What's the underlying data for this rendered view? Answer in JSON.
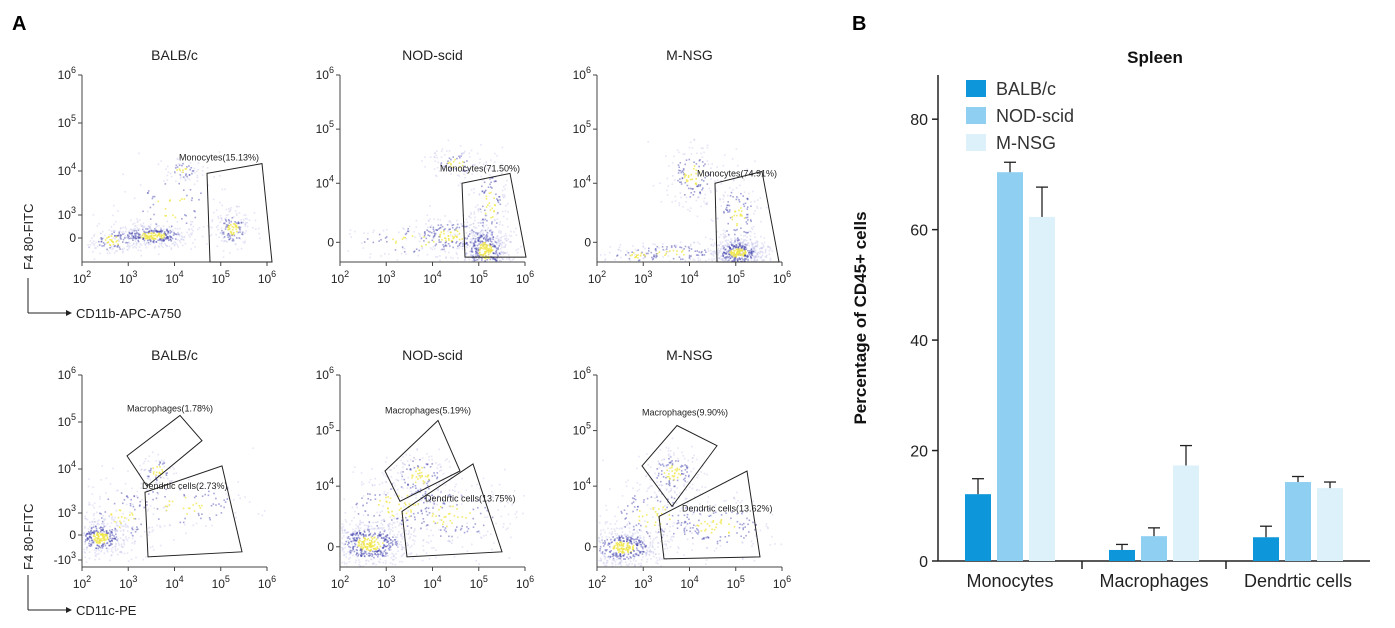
{
  "panel_a_label": "A",
  "panel_b_label": "B",
  "flow_rows": [
    {
      "x_axis_label": "CD11b-APC-A750",
      "y_axis_label": "F4 80-FITC",
      "x_ticks": [
        [
          "10",
          "2"
        ],
        [
          "10",
          "3"
        ],
        [
          "10",
          "4"
        ],
        [
          "10",
          "5"
        ],
        [
          "10",
          "6"
        ]
      ],
      "plots": [
        {
          "title": "BALB/c",
          "y_ticks": [
            [
              "10",
              "6"
            ],
            [
              "10",
              "5"
            ],
            [
              "10",
              "4"
            ],
            [
              "10",
              "3"
            ],
            [
              "0",
              ""
            ]
          ],
          "gates": [
            {
              "label": "Monocytes(15.13%)",
              "value": 15.13
            }
          ]
        },
        {
          "title": "NOD-scid",
          "y_ticks": [
            [
              "10",
              "6"
            ],
            [
              "10",
              "5"
            ],
            [
              "10",
              "4"
            ],
            [
              "0",
              ""
            ]
          ],
          "gates": [
            {
              "label": "Monocytes(71.50%)",
              "value": 71.5
            }
          ]
        },
        {
          "title": "M-NSG",
          "y_ticks": [
            [
              "10",
              "6"
            ],
            [
              "10",
              "5"
            ],
            [
              "10",
              "4"
            ],
            [
              "0",
              ""
            ]
          ],
          "gates": [
            {
              "label": "Monocytes(74.91%)",
              "value": 74.91
            }
          ]
        }
      ]
    },
    {
      "x_axis_label": "CD11c-PE",
      "y_axis_label": "F4 80-FITC",
      "x_ticks": [
        [
          "10",
          "2"
        ],
        [
          "10",
          "3"
        ],
        [
          "10",
          "4"
        ],
        [
          "10",
          "5"
        ],
        [
          "10",
          "6"
        ]
      ],
      "plots": [
        {
          "title": "BALB/c",
          "y_ticks": [
            [
              "10",
              "6"
            ],
            [
              "10",
              "5"
            ],
            [
              "10",
              "4"
            ],
            [
              "10",
              "3"
            ],
            [
              "0",
              ""
            ],
            [
              "-10",
              "3"
            ]
          ],
          "gates": [
            {
              "label": "Macrophages(1.78%)",
              "value": 1.78
            },
            {
              "label": "Dendrtic cells(2.73%)",
              "value": 2.73
            }
          ]
        },
        {
          "title": "NOD-scid",
          "y_ticks": [
            [
              "10",
              "6"
            ],
            [
              "10",
              "5"
            ],
            [
              "10",
              "4"
            ],
            [
              "0",
              ""
            ]
          ],
          "gates": [
            {
              "label": "Macrophages(5.19%)",
              "value": 5.19
            },
            {
              "label": "Dendrtic cells(13.75%)",
              "value": 13.75
            }
          ]
        },
        {
          "title": "M-NSG",
          "y_ticks": [
            [
              "10",
              "6"
            ],
            [
              "10",
              "5"
            ],
            [
              "10",
              "4"
            ],
            [
              "0",
              ""
            ]
          ],
          "gates": [
            {
              "label": "Macrophages(9.90%)",
              "value": 9.9
            },
            {
              "label": "Dendrtic cells(13.62%)",
              "value": 13.62
            }
          ]
        }
      ]
    }
  ],
  "colors": {
    "balbc": "#0d96d9",
    "nodscid": "#8fd0f2",
    "mnsg": "#ddf1fb",
    "density_low": "#b4b4e6",
    "density_mid": "#3a3aa8",
    "density_high": "#f0e64a"
  },
  "chart_data": {
    "type": "bar",
    "title": "Spleen",
    "ylabel": "Percentage of CD45+ cells",
    "xlabel": "",
    "ylim": [
      0,
      88
    ],
    "yticks": [
      0,
      20,
      40,
      60,
      80
    ],
    "categories": [
      "Monocytes",
      "Macrophages",
      "Dendrtic cells"
    ],
    "legend_position": "top-left",
    "series": [
      {
        "name": "BALB/c",
        "color": "#0d96d9",
        "values": [
          12.1,
          2.0,
          4.3
        ],
        "errors": [
          2.8,
          1.0,
          2.0
        ]
      },
      {
        "name": "NOD-scid",
        "color": "#8fd0f2",
        "values": [
          70.4,
          4.5,
          14.3
        ],
        "errors": [
          1.8,
          1.5,
          1.0
        ]
      },
      {
        "name": "M-NSG",
        "color": "#ddf1fb",
        "values": [
          62.3,
          17.3,
          13.2
        ],
        "errors": [
          5.4,
          3.6,
          1.1
        ]
      }
    ]
  }
}
